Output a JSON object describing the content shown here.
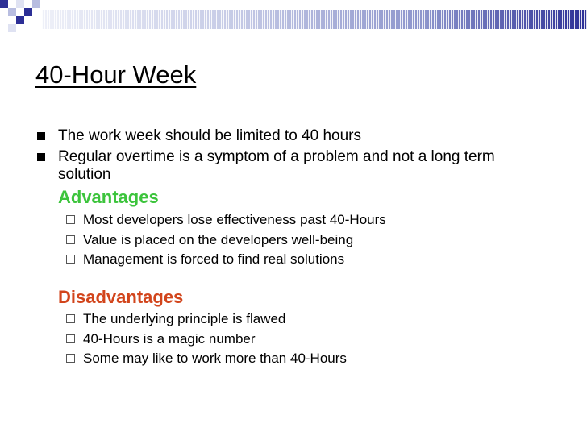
{
  "colors": {
    "advantages": "#3cc43c",
    "disadvantages": "#d2451c",
    "accent_dark": "#2c2f96",
    "accent_light": "#b8bde0"
  },
  "slide": {
    "title": "40-Hour Week",
    "bullets": [
      {
        "text": "The work week should be limited to 40 hours"
      },
      {
        "text": "Regular overtime is a symptom of a problem and not a long term solution"
      }
    ],
    "advantages": {
      "heading": "Advantages",
      "items": [
        "Most developers lose effectiveness past 40-Hours",
        "Value is placed on the developers well-being",
        "Management is forced to find real solutions"
      ]
    },
    "disadvantages": {
      "heading": "Disadvantages",
      "items": [
        "The underlying principle is flawed",
        "40-Hours is a magic number",
        "Some may like to work more than 40-Hours"
      ]
    }
  }
}
